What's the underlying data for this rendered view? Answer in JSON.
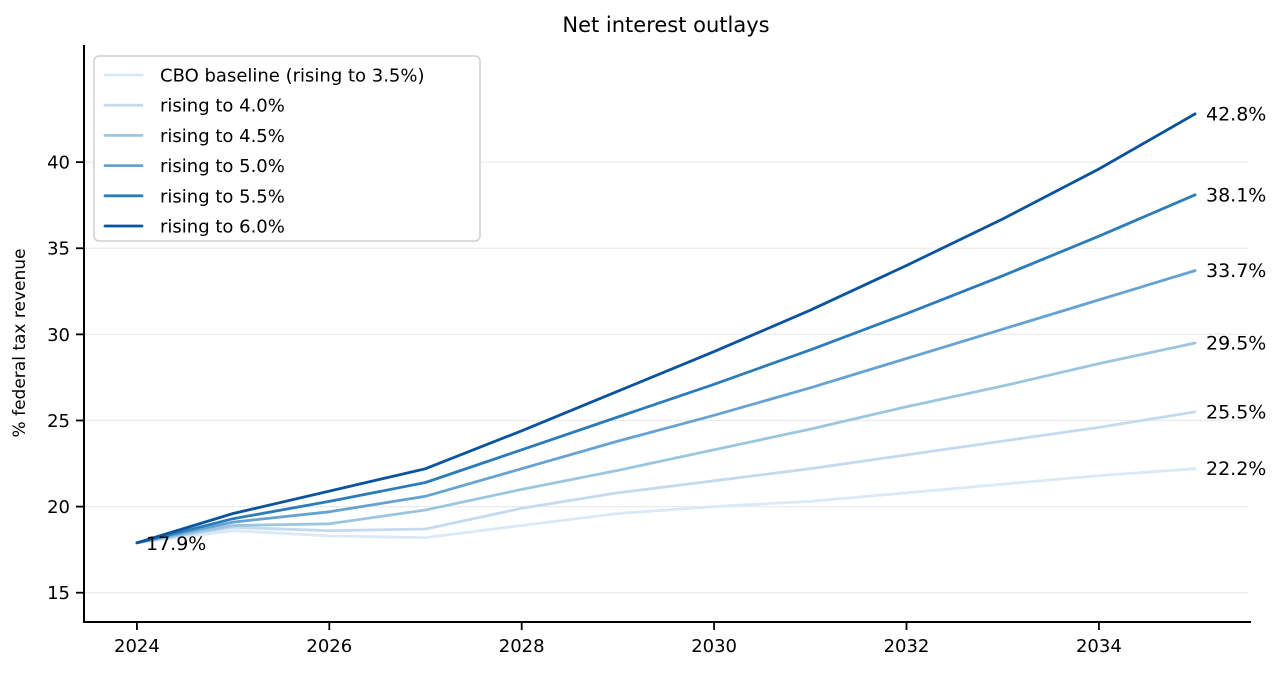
{
  "chart_data": {
    "type": "line",
    "title": "Net interest outlays",
    "xlabel": "",
    "ylabel": "% federal tax revenue",
    "x": [
      2024,
      2025,
      2026,
      2027,
      2028,
      2029,
      2030,
      2031,
      2032,
      2033,
      2034,
      2035
    ],
    "xticks": [
      2024,
      2026,
      2028,
      2030,
      2032,
      2034
    ],
    "xtick_labels": [
      "2024",
      "2026",
      "2028",
      "2030",
      "2032",
      "2034"
    ],
    "yticks": [
      15,
      20,
      25,
      30,
      35,
      40
    ],
    "ytick_labels": [
      "15",
      "20",
      "25",
      "30",
      "35",
      "40"
    ],
    "xlim": [
      2023.45,
      2035.55
    ],
    "ylim": [
      13.3,
      46.8
    ],
    "grid": "horizontal",
    "gridline_color": "#ebebeb",
    "axis_color": "#000000",
    "legend_position": "upper left",
    "start_annotation": {
      "text": "17.9%",
      "x": 2024,
      "y": 17.9
    },
    "series": [
      {
        "name": "CBO baseline (rising to 3.5%)",
        "color": "#dbe9f6",
        "end_label": "22.2%",
        "values": [
          17.9,
          18.6,
          18.3,
          18.2,
          18.9,
          19.6,
          20.0,
          20.3,
          20.8,
          21.3,
          21.8,
          22.2
        ]
      },
      {
        "name": "rising to 4.0%",
        "color": "#c5daee",
        "end_label": "25.5%",
        "values": [
          17.9,
          18.8,
          18.6,
          18.7,
          19.9,
          20.8,
          21.5,
          22.2,
          23.0,
          23.8,
          24.6,
          25.5
        ]
      },
      {
        "name": "rising to 4.5%",
        "color": "#9cc6df",
        "end_label": "29.5%",
        "values": [
          17.9,
          18.9,
          19.0,
          19.8,
          21.0,
          22.1,
          23.3,
          24.5,
          25.8,
          27.0,
          28.3,
          29.5
        ]
      },
      {
        "name": "rising to 5.0%",
        "color": "#66a3d2",
        "end_label": "33.7%",
        "values": [
          17.9,
          19.1,
          19.7,
          20.6,
          22.2,
          23.8,
          25.3,
          26.9,
          28.6,
          30.3,
          32.0,
          33.7
        ]
      },
      {
        "name": "rising to 5.5%",
        "color": "#2c7cba",
        "end_label": "38.1%",
        "values": [
          17.9,
          19.3,
          20.3,
          21.4,
          23.3,
          25.2,
          27.1,
          29.1,
          31.2,
          33.4,
          35.7,
          38.1
        ]
      },
      {
        "name": "rising to 6.0%",
        "color": "#0a539e",
        "end_label": "42.8%",
        "values": [
          17.9,
          19.6,
          20.9,
          22.2,
          24.4,
          26.7,
          29.0,
          31.4,
          34.0,
          36.7,
          39.6,
          42.8
        ]
      }
    ]
  }
}
